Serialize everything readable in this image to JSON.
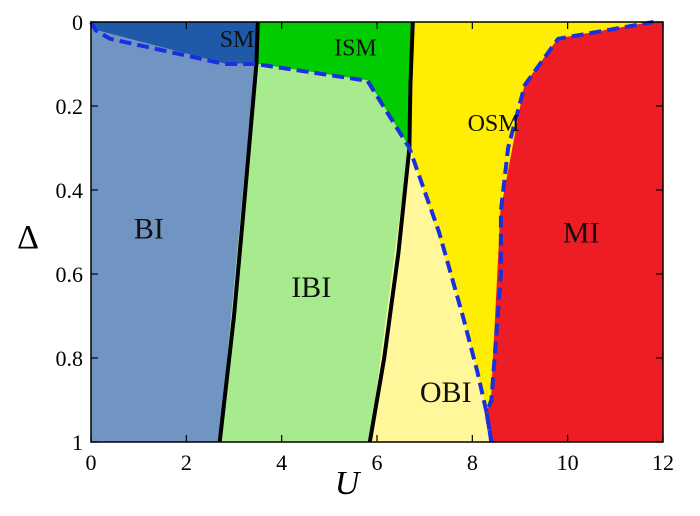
{
  "chart_data": {
    "type": "phase-diagram",
    "title": "",
    "xlabel": "U",
    "ylabel": "Δ",
    "xlim": [
      0,
      12
    ],
    "ylim": [
      0,
      1
    ],
    "y_inverted": true,
    "xticks": [
      0,
      2,
      4,
      6,
      8,
      10,
      12
    ],
    "yticks": [
      0,
      0.2,
      0.4,
      0.6,
      0.8,
      1
    ],
    "grid": false,
    "colors": {
      "SM": "#1f5aa8",
      "BI": "#7195c2",
      "ISM": "#00cc00",
      "IBI": "#a8eb8e",
      "OSM": "#ffee00",
      "OBI": "#fff79a",
      "MI": "#ee1c25",
      "solid_boundary": "#000000",
      "dashed_boundary": "#1a2fe0"
    },
    "regions": [
      {
        "label": "SM",
        "label_at": [
          2.7,
          0.04
        ],
        "polygon": [
          [
            0,
            0
          ],
          [
            3.5,
            0
          ],
          [
            3.47,
            0.1
          ],
          [
            2.8,
            0.1
          ],
          [
            0.1,
            0.02
          ]
        ]
      },
      {
        "label": "BI",
        "label_at": [
          0.9,
          0.49
        ],
        "polygon": [
          [
            0,
            0
          ],
          [
            0.1,
            0.02
          ],
          [
            2.8,
            0.1
          ],
          [
            3.45,
            0.1
          ],
          [
            2.7,
            1
          ],
          [
            0,
            1
          ]
        ]
      },
      {
        "label": "ISM",
        "label_at": [
          5.1,
          0.06
        ],
        "polygon": [
          [
            3.5,
            0
          ],
          [
            6.75,
            0
          ],
          [
            6.68,
            0.3
          ],
          [
            5.8,
            0.14
          ],
          [
            3.47,
            0.1
          ]
        ]
      },
      {
        "label": "IBI",
        "label_at": [
          4.2,
          0.63
        ],
        "polygon": [
          [
            3.45,
            0.1
          ],
          [
            5.8,
            0.14
          ],
          [
            6.68,
            0.3
          ],
          [
            5.85,
            1
          ],
          [
            2.7,
            1
          ]
        ]
      },
      {
        "label": "OSM",
        "label_at": [
          7.9,
          0.24
        ],
        "polygon": [
          [
            6.75,
            0
          ],
          [
            12,
            0
          ],
          [
            11.8,
            0
          ],
          [
            9.8,
            0.04
          ],
          [
            9.1,
            0.15
          ],
          [
            8.6,
            0.45
          ],
          [
            8.4,
            0.9
          ],
          [
            8.3,
            0.93
          ],
          [
            7.8,
            0.7
          ],
          [
            6.68,
            0.3
          ]
        ]
      },
      {
        "label": "OBI",
        "label_at": [
          6.9,
          0.88
        ],
        "polygon": [
          [
            6.68,
            0.3
          ],
          [
            7.8,
            0.7
          ],
          [
            8.3,
            0.93
          ],
          [
            8.4,
            1
          ],
          [
            5.85,
            1
          ]
        ]
      },
      {
        "label": "MI",
        "label_at": [
          9.9,
          0.5
        ],
        "polygon": [
          [
            12,
            0
          ],
          [
            12,
            1
          ],
          [
            8.4,
            1
          ],
          [
            8.3,
            0.93
          ],
          [
            8.4,
            0.9
          ],
          [
            8.6,
            0.45
          ],
          [
            9.1,
            0.15
          ],
          [
            9.8,
            0.04
          ],
          [
            11.8,
            0
          ]
        ]
      }
    ],
    "boundaries": [
      {
        "style": "solid",
        "points": [
          [
            3.5,
            0
          ],
          [
            3.47,
            0.1
          ],
          [
            3.2,
            0.45
          ],
          [
            3.0,
            0.7
          ],
          [
            2.7,
            1
          ]
        ]
      },
      {
        "style": "solid",
        "points": [
          [
            6.75,
            0
          ],
          [
            6.7,
            0.15
          ],
          [
            6.68,
            0.3
          ],
          [
            6.45,
            0.55
          ],
          [
            6.15,
            0.8
          ],
          [
            5.85,
            1
          ]
        ]
      },
      {
        "style": "dashed",
        "points": [
          [
            0,
            0
          ],
          [
            0.1,
            0.02
          ],
          [
            0.4,
            0.04
          ],
          [
            2.8,
            0.1
          ],
          [
            3.45,
            0.1
          ],
          [
            5.8,
            0.14
          ],
          [
            6.68,
            0.3
          ],
          [
            7.3,
            0.5
          ],
          [
            7.8,
            0.7
          ],
          [
            8.1,
            0.83
          ],
          [
            8.3,
            0.93
          ],
          [
            8.4,
            1
          ]
        ]
      },
      {
        "style": "dashed",
        "points": [
          [
            8.4,
            1
          ],
          [
            8.3,
            0.93
          ],
          [
            8.4,
            0.9
          ],
          [
            8.6,
            0.6
          ],
          [
            8.6,
            0.45
          ],
          [
            8.75,
            0.3
          ],
          [
            9.1,
            0.15
          ],
          [
            9.8,
            0.04
          ],
          [
            11.8,
            0
          ]
        ]
      }
    ]
  }
}
